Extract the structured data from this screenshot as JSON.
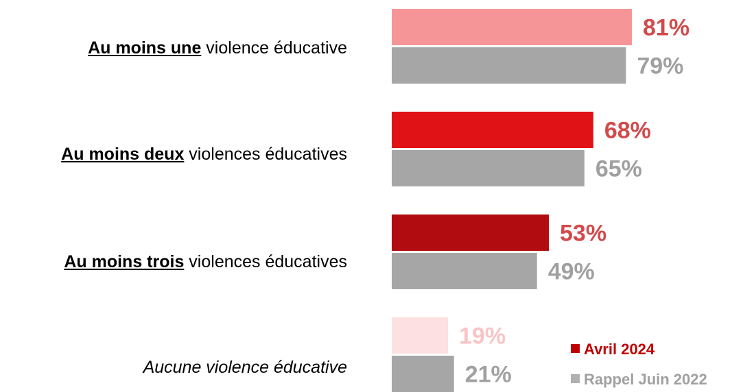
{
  "chart_data": {
    "type": "bar",
    "orientation": "horizontal",
    "categories": [
      {
        "bold": "Au moins une",
        "rest": " violence éducative",
        "italic": false
      },
      {
        "bold": "Au moins deux",
        "rest": " violences éducatives",
        "italic": false
      },
      {
        "bold": "Au moins trois",
        "rest": " violences éducatives",
        "italic": false
      },
      {
        "bold": "",
        "rest": "Aucune violence éducative",
        "italic": true
      }
    ],
    "series": [
      {
        "name": "Avril 2024",
        "values": [
          81,
          68,
          53,
          19
        ],
        "labels": [
          "81%",
          "68%",
          "53%",
          "19%"
        ],
        "colors": [
          "#f69597",
          "#e01216",
          "#b10c0f",
          "#fde0e1"
        ],
        "label_colors": [
          "#d24a4c",
          "#d24a4c",
          "#d24a4c",
          "#f8c4c6"
        ]
      },
      {
        "name": "Rappel Juin 2022",
        "values": [
          79,
          65,
          49,
          21
        ],
        "labels": [
          "79%",
          "65%",
          "49%",
          "21%"
        ],
        "colors": [
          "#a6a6a6",
          "#a6a6a6",
          "#a6a6a6",
          "#a6a6a6"
        ],
        "label_colors": [
          "#a0a0a0",
          "#a0a0a0",
          "#a0a0a0",
          "#a0a0a0"
        ]
      }
    ],
    "xlim": [
      0,
      100
    ],
    "legend": {
      "position": "bottom-right",
      "colors": [
        "#c00000",
        "#b0b0b0"
      ]
    },
    "grid": false
  }
}
